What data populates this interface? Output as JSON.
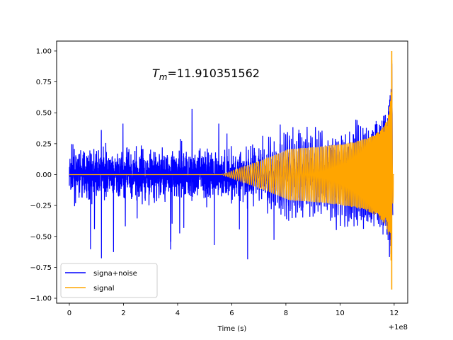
{
  "chart_data": {
    "type": "line",
    "title": "",
    "xlabel": "Time (s)",
    "ylabel": "",
    "x_offset_label": "+1e8",
    "xlim": [
      -0.47,
      12.5
    ],
    "ylim": [
      -1.04,
      1.08
    ],
    "x_ticks": [
      0,
      2,
      4,
      6,
      8,
      10,
      12
    ],
    "x_tick_labels": [
      "0",
      "2",
      "4",
      "6",
      "8",
      "10",
      "12"
    ],
    "y_ticks": [
      -1.0,
      -0.75,
      -0.5,
      -0.25,
      0.0,
      0.25,
      0.5,
      0.75,
      1.0
    ],
    "y_tick_labels": [
      "−1.00",
      "−0.75",
      "−0.50",
      "−0.25",
      "0.00",
      "0.25",
      "0.50",
      "0.75",
      "1.00"
    ],
    "annotation": {
      "prefix": "T",
      "subscript": "m",
      "value": "=11.910351562",
      "x": 3.0,
      "y": 0.8
    },
    "series": [
      {
        "name": "signa+noise",
        "color": "#0000ff",
        "kind": "noise_envelope",
        "x_range": [
          0,
          11.95
        ],
        "noise_amplitude_typical": 0.3,
        "noise_peak_max": 0.96,
        "noise_peak_min": -0.93
      },
      {
        "name": "signal",
        "color": "#ffa500",
        "kind": "chirp",
        "x_range": [
          0,
          12.0
        ],
        "merger_time": 11.91,
        "peak_amplitude": 1.0,
        "min_amplitude": -0.93
      }
    ],
    "legend": {
      "position": "lower-left"
    },
    "grid": false
  }
}
